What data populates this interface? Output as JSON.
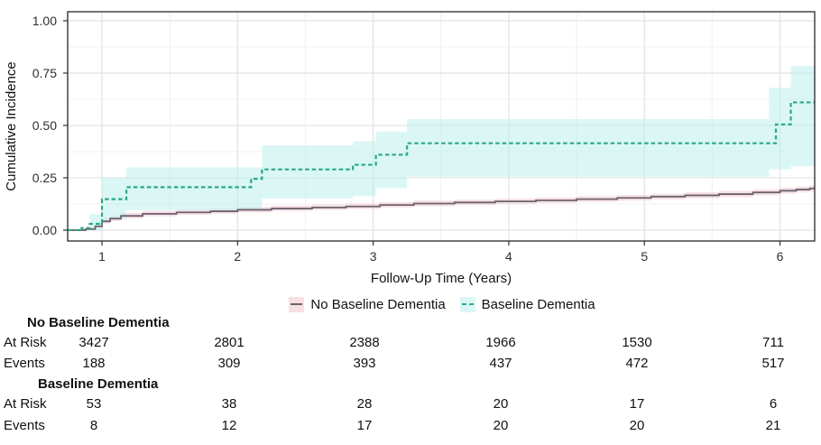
{
  "chart_data": {
    "type": "line",
    "subtype": "step-cumulative-incidence",
    "title": "",
    "xlabel": "Follow-Up Time (Years)",
    "ylabel": "Cumulative Incidence",
    "xlim": [
      0.747,
      6.256
    ],
    "ylim": [
      -0.052,
      1.043
    ],
    "x_end": 6.256,
    "x_ticks": [
      1,
      2,
      3,
      4,
      5,
      6
    ],
    "x_minor_ticks": [
      1.5,
      2.5,
      3.5,
      4.5,
      5.5
    ],
    "y_ticks": [
      0,
      0.25,
      0.5,
      0.75,
      1
    ],
    "y_tick_labels": [
      "0.00",
      "0.25",
      "0.50",
      "0.75",
      "1.00"
    ],
    "y_minor_ticks": [
      0.125,
      0.375,
      0.625,
      0.875
    ],
    "grid": "major+minor",
    "legend_position": "bottom",
    "colors": {
      "grid_major": "#e2e2e2",
      "grid_minor": "#f0f0f0",
      "panel_border": "#262626",
      "tick_mark": "#333333",
      "axis_text": "#303030"
    },
    "series": [
      {
        "name": "No Baseline Dementia",
        "line_style": "solid",
        "line_color": "#6b6270",
        "line_width": 1.8,
        "band_color": "#f0c9cf",
        "band_opacity": 0.55,
        "points": [
          [
            0.75,
            0
          ],
          [
            0.88,
            0.005
          ],
          [
            0.95,
            0.018
          ],
          [
            1.0,
            0.042
          ],
          [
            1.06,
            0.055
          ],
          [
            1.14,
            0.068
          ],
          [
            1.3,
            0.078
          ],
          [
            1.55,
            0.085
          ],
          [
            1.8,
            0.09
          ],
          [
            2.0,
            0.097
          ],
          [
            2.25,
            0.103
          ],
          [
            2.55,
            0.108
          ],
          [
            2.8,
            0.113
          ],
          [
            3.05,
            0.12
          ],
          [
            3.3,
            0.127
          ],
          [
            3.6,
            0.132
          ],
          [
            3.9,
            0.137
          ],
          [
            4.2,
            0.142
          ],
          [
            4.5,
            0.148
          ],
          [
            4.8,
            0.154
          ],
          [
            5.05,
            0.16
          ],
          [
            5.3,
            0.166
          ],
          [
            5.55,
            0.172
          ],
          [
            5.8,
            0.18
          ],
          [
            6.0,
            0.188
          ],
          [
            6.12,
            0.194
          ],
          [
            6.22,
            0.199
          ]
        ],
        "band": [
          [
            0.97,
            0.01,
            0.035
          ],
          [
            1.0,
            0.032,
            0.058
          ],
          [
            1.06,
            0.043,
            0.07
          ],
          [
            1.14,
            0.056,
            0.082
          ],
          [
            1.3,
            0.066,
            0.092
          ],
          [
            1.55,
            0.073,
            0.099
          ],
          [
            1.8,
            0.078,
            0.104
          ],
          [
            2.0,
            0.085,
            0.111
          ],
          [
            2.25,
            0.091,
            0.117
          ],
          [
            2.55,
            0.096,
            0.122
          ],
          [
            2.8,
            0.101,
            0.127
          ],
          [
            3.05,
            0.108,
            0.134
          ],
          [
            3.3,
            0.114,
            0.141
          ],
          [
            3.6,
            0.119,
            0.146
          ],
          [
            3.9,
            0.124,
            0.151
          ],
          [
            4.2,
            0.129,
            0.156
          ],
          [
            4.5,
            0.135,
            0.162
          ],
          [
            4.8,
            0.141,
            0.168
          ],
          [
            5.05,
            0.147,
            0.174
          ],
          [
            5.3,
            0.152,
            0.18
          ],
          [
            5.55,
            0.158,
            0.187
          ],
          [
            5.8,
            0.166,
            0.195
          ],
          [
            6.0,
            0.174,
            0.203
          ],
          [
            6.12,
            0.18,
            0.209
          ],
          [
            6.22,
            0.185,
            0.214
          ]
        ]
      },
      {
        "name": "Baseline Dementia",
        "line_style": "dashed",
        "line_color": "#2aa988",
        "line_width": 2.2,
        "band_color": "#b8f0ec",
        "band_opacity": 0.5,
        "points": [
          [
            0.75,
            0
          ],
          [
            0.85,
            0.01
          ],
          [
            0.91,
            0.03
          ],
          [
            1.0,
            0.148
          ],
          [
            1.18,
            0.205
          ],
          [
            2.1,
            0.245
          ],
          [
            2.18,
            0.29
          ],
          [
            2.85,
            0.312
          ],
          [
            3.02,
            0.36
          ],
          [
            3.25,
            0.415
          ],
          [
            5.97,
            0.505
          ],
          [
            6.08,
            0.61
          ]
        ],
        "band": [
          [
            0.91,
            0.0,
            0.075
          ],
          [
            1.0,
            0.05,
            0.25
          ],
          [
            1.18,
            0.095,
            0.3
          ],
          [
            2.18,
            0.15,
            0.405
          ],
          [
            2.85,
            0.163,
            0.425
          ],
          [
            3.02,
            0.2,
            0.47
          ],
          [
            3.25,
            0.255,
            0.53
          ],
          [
            5.92,
            0.29,
            0.68
          ],
          [
            6.08,
            0.305,
            0.785
          ]
        ]
      }
    ]
  },
  "legend": {
    "items": [
      {
        "label": "No Baseline Dementia",
        "line_style": "solid",
        "line_color": "#6b6270",
        "band_color": "#f7dfe3"
      },
      {
        "label": "Baseline Dementia",
        "line_style": "dashed",
        "line_color": "#2aa988",
        "band_color": "#dbf7f5"
      }
    ]
  },
  "risk_table": {
    "columns": [
      "1",
      "2",
      "3",
      "4",
      "5",
      "6"
    ],
    "groups": [
      {
        "header": "No Baseline Dementia",
        "rows": [
          {
            "label": "At Risk",
            "values": [
              "3427",
              "2801",
              "2388",
              "1966",
              "1530",
              "711"
            ]
          },
          {
            "label": "Events",
            "values": [
              "188",
              "309",
              "393",
              "437",
              "472",
              "517"
            ]
          }
        ]
      },
      {
        "header": "Baseline Dementia",
        "rows": [
          {
            "label": "At Risk",
            "values": [
              "53",
              "38",
              "28",
              "20",
              "17",
              "6"
            ]
          },
          {
            "label": "Events",
            "values": [
              "8",
              "12",
              "17",
              "20",
              "20",
              "21"
            ]
          }
        ]
      }
    ]
  }
}
